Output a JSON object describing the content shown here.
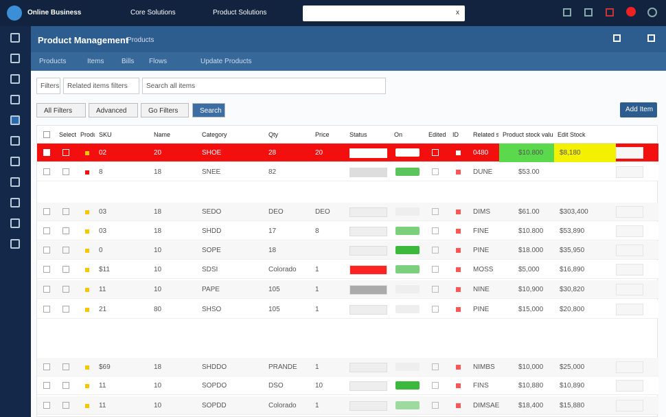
{
  "topbar": {
    "brand": "Online Business",
    "menu": [
      "Core Solutions",
      "Product Solutions"
    ],
    "search_icon": "x"
  },
  "header": {
    "title": "Product Management",
    "subtitle": "Products",
    "tabs": [
      "Products",
      "Items",
      "Bills",
      "Flows",
      "Update Products"
    ]
  },
  "filters": [
    "Filters",
    "Related items filters",
    "Search all items"
  ],
  "buttons": [
    "All Filters",
    "Advanced",
    "Go Filters",
    "Search"
  ],
  "action_button": "Add Item",
  "table": {
    "columns": [
      "",
      "Select",
      "Product",
      "SKU",
      "Name",
      "Category",
      "Qty",
      "Price",
      "Status",
      "On",
      "Edited",
      "ID",
      "Related stock limits",
      "Product stock value",
      "Edit Stock"
    ],
    "rows": [
      {
        "highlight": "#f40f0f",
        "dot": "#f7c600",
        "progress": "#ffffff",
        "status": "#ffffff",
        "cells": [
          "02",
          "20",
          "SHOE",
          "28",
          "20",
          "0480",
          "$10.800",
          "$8,180"
        ]
      },
      {
        "dot": "#e11",
        "progress": "#ddd",
        "status": "#5cc45c",
        "cells": [
          "8",
          "18",
          "SNEE",
          "82",
          "",
          "DUNE",
          "$53.00",
          ""
        ]
      },
      {
        "dot": "#f7c600",
        "progress": "#eee",
        "status": "#eee",
        "cells": [
          "03",
          "18",
          "SEDO",
          "DEO",
          "DEO",
          "DIMS",
          "$61.00",
          "$303,400"
        ]
      },
      {
        "dot": "#f7c600",
        "progress": "#eee",
        "status": "#7ccf7c",
        "cells": [
          "03",
          "18",
          "SHDD",
          "17",
          "8",
          "FINE",
          "$10.800",
          "$53,890"
        ]
      },
      {
        "dot": "#f7c600",
        "progress": "#eee",
        "status": "#3cb83c",
        "cells": [
          "0",
          "10",
          "SOPE",
          "18",
          "",
          "PINE",
          "$18.000",
          "$35,950"
        ]
      },
      {
        "dot": "#f7c600",
        "progress": "#f22",
        "status": "#7ccf7c",
        "cells": [
          "$11",
          "10",
          "SDSI",
          "Colorado",
          "1",
          "MOSS",
          "$5,000",
          "$16,890"
        ]
      },
      {
        "dot": "#f7c600",
        "progress": "#aaa",
        "status": "#eee",
        "cells": [
          "11",
          "10",
          "PAPE",
          "105",
          "1",
          "NINE",
          "$10,900",
          "$30,820"
        ]
      },
      {
        "dot": "#f7c600",
        "progress": "#eee",
        "status": "#eee",
        "cells": [
          "21",
          "80",
          "SHSO",
          "105",
          "1",
          "PINE",
          "$15,000",
          "$20,800"
        ]
      },
      {
        "dot": "#f7c600",
        "progress": "#eee",
        "status": "#eee",
        "cells": [
          "$69",
          "18",
          "SHDDO",
          "PRANDE",
          "1",
          "NIMBS",
          "$10,000",
          "$25,000"
        ]
      },
      {
        "dot": "#f7c600",
        "progress": "#eee",
        "status": "#3cb83c",
        "cells": [
          "11",
          "10",
          "SOPDO",
          "DSO",
          "10",
          "FINS",
          "$10,880",
          "$10,890"
        ]
      },
      {
        "dot": "#f7c600",
        "progress": "#eee",
        "status": "#9ed99e",
        "cells": [
          "11",
          "10",
          "SOPDD",
          "Colorado",
          "1",
          "DIMSAE",
          "$18,400",
          "$15,880"
        ]
      }
    ]
  }
}
